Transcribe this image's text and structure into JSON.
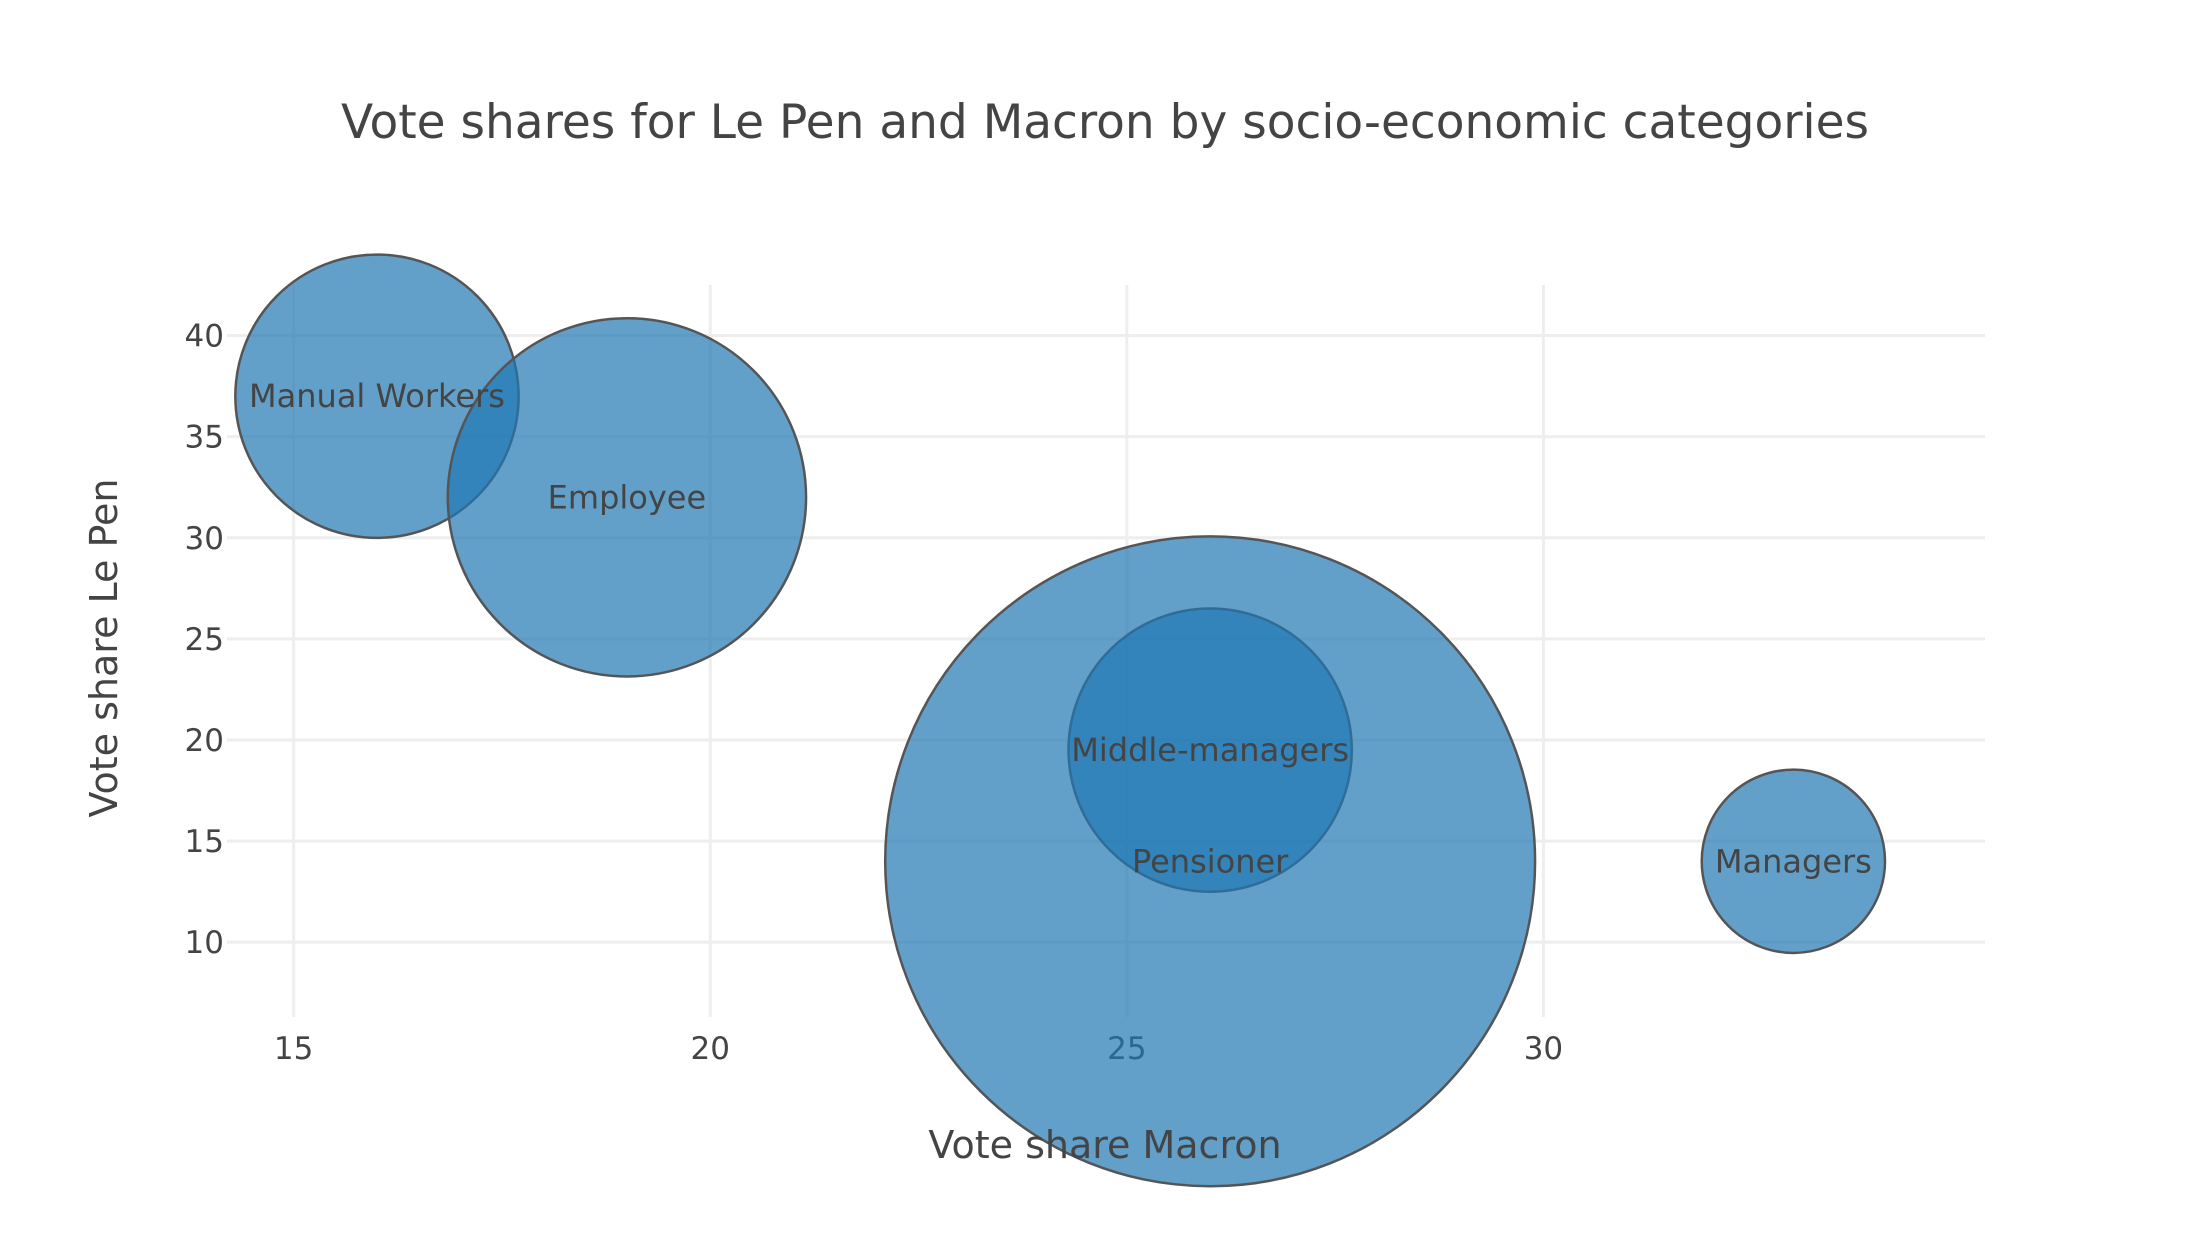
{
  "chart_data": {
    "type": "scatter",
    "title": "Vote shares for Le Pen and Macron by socio-economic categories",
    "xlabel": "Vote share Macron",
    "ylabel": "Vote share Le Pen",
    "xlim": [
      14.2,
      35.3
    ],
    "ylim": [
      6.3,
      42.5
    ],
    "x_ticks": [
      15,
      20,
      25,
      30
    ],
    "y_ticks": [
      10,
      15,
      20,
      25,
      30,
      35,
      40
    ],
    "grid": true,
    "legend": "none",
    "color": "#1f77b4",
    "points": [
      {
        "label": "Manual Workers",
        "x": 16,
        "y": 37,
        "size": 34
      },
      {
        "label": "Employee",
        "x": 19,
        "y": 32,
        "size": 43
      },
      {
        "label": "Middle-managers",
        "x": 26,
        "y": 19.5,
        "size": 34
      },
      {
        "label": "Pensioner",
        "x": 26,
        "y": 14,
        "size": 78
      },
      {
        "label": "Managers",
        "x": 33,
        "y": 14,
        "size": 22
      }
    ]
  }
}
